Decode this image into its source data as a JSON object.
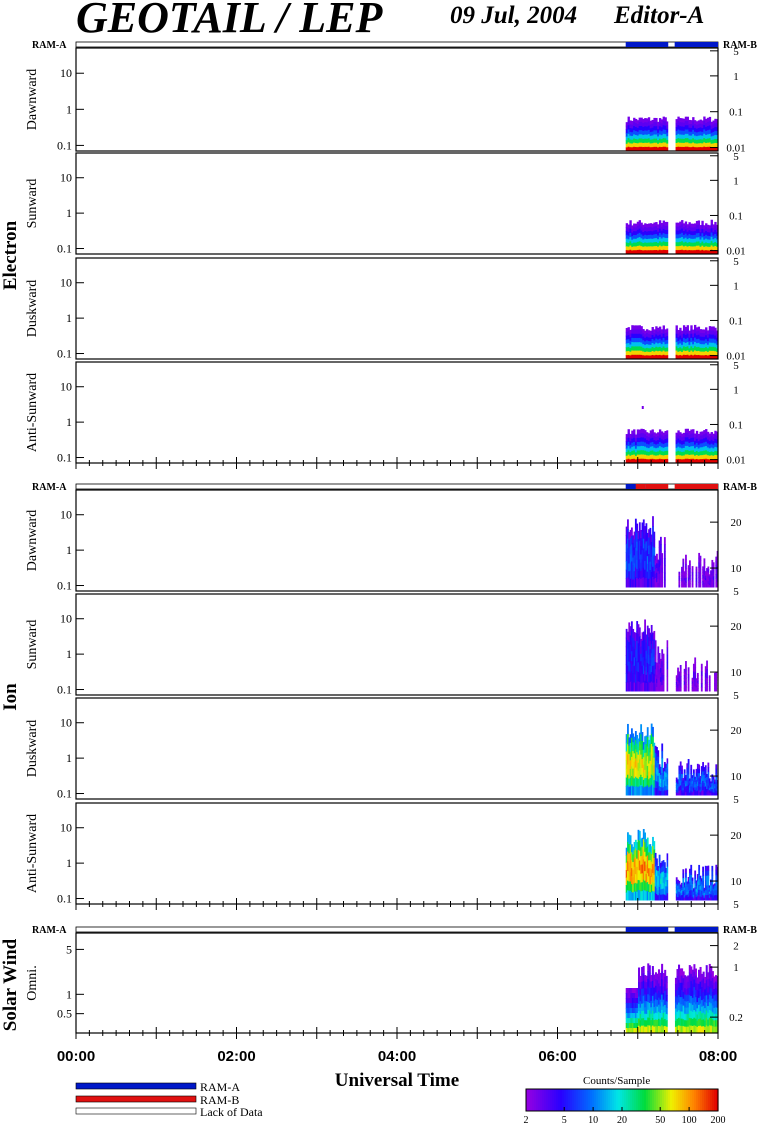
{
  "title": "GEOTAIL / LEP",
  "date": "09 Jul, 2004",
  "editor": "Editor-A",
  "chart_data": {
    "type": "heatmap",
    "x_unit": "Universal Time",
    "x_range": [
      "00:00",
      "08:00"
    ],
    "x_ticks": [
      "00:00",
      "02:00",
      "04:00",
      "06:00",
      "08:00"
    ],
    "xlabel": "Universal Time",
    "mode_bar_labels": {
      "left": "RAM-A",
      "right": "RAM-B"
    },
    "data_start_hour": 6.85,
    "data_gap_hours": [
      7.38,
      7.46
    ],
    "groups": [
      {
        "name": "Electron",
        "mode_bar": [
          {
            "from": 6.85,
            "to": 7.38,
            "mode": "RAM-A"
          },
          {
            "from": 7.46,
            "to": 8.0,
            "mode": "RAM-A"
          }
        ],
        "panels": [
          {
            "label": "Dawnward",
            "left_ticks": [
              "0.1",
              "1",
              "10"
            ],
            "right_ticks": [
              "0.01",
              "0.1",
              "1",
              "5"
            ]
          },
          {
            "label": "Sunward",
            "left_ticks": [
              "0.1",
              "1",
              "10"
            ],
            "right_ticks": [
              "0.01",
              "0.1",
              "1",
              "5"
            ]
          },
          {
            "label": "Duskward",
            "left_ticks": [
              "0.1",
              "1",
              "10"
            ],
            "right_ticks": [
              "0.01",
              "0.1",
              "1",
              "5"
            ]
          },
          {
            "label": "Anti-Sunward",
            "left_ticks": [
              "0.1",
              "1",
              "10"
            ],
            "right_ticks": [
              "0.01",
              "0.1",
              "1",
              "5"
            ]
          }
        ]
      },
      {
        "name": "Ion",
        "mode_bar": [
          {
            "from": 6.85,
            "to": 7.1,
            "mode": "mixed"
          },
          {
            "from": 7.1,
            "to": 7.38,
            "mode": "RAM-B"
          },
          {
            "from": 7.46,
            "to": 8.0,
            "mode": "RAM-B"
          }
        ],
        "panels": [
          {
            "label": "Dawnward",
            "left_ticks": [
              "0.1",
              "1",
              "10"
            ],
            "right_ticks": [
              "5",
              "10",
              "20"
            ]
          },
          {
            "label": "Sunward",
            "left_ticks": [
              "0.1",
              "1",
              "10"
            ],
            "right_ticks": [
              "5",
              "10",
              "20"
            ]
          },
          {
            "label": "Duskward",
            "left_ticks": [
              "0.1",
              "1",
              "10"
            ],
            "right_ticks": [
              "5",
              "10",
              "20"
            ]
          },
          {
            "label": "Anti-Sunward",
            "left_ticks": [
              "0.1",
              "1",
              "10"
            ],
            "right_ticks": [
              "5",
              "10",
              "20"
            ]
          }
        ]
      },
      {
        "name": "Solar Wind",
        "mode_bar": [
          {
            "from": 6.85,
            "to": 7.38,
            "mode": "RAM-A"
          },
          {
            "from": 7.46,
            "to": 8.0,
            "mode": "RAM-A"
          }
        ],
        "panels": [
          {
            "label": "Omni.",
            "left_ticks": [
              "0.5",
              "1",
              "5"
            ],
            "right_ticks": [
              "0.2",
              "1",
              "2"
            ]
          }
        ]
      }
    ],
    "legend": [
      {
        "label": "RAM-A",
        "color": "#0018c8"
      },
      {
        "label": "RAM-B",
        "color": "#e01010"
      },
      {
        "label": "Lack of Data",
        "color": "#ffffff"
      }
    ],
    "colorbar": {
      "title": "Counts/Sample",
      "ticks": [
        "2",
        "5",
        "10",
        "20",
        "50",
        "100",
        "200"
      ],
      "scale": "log"
    }
  }
}
